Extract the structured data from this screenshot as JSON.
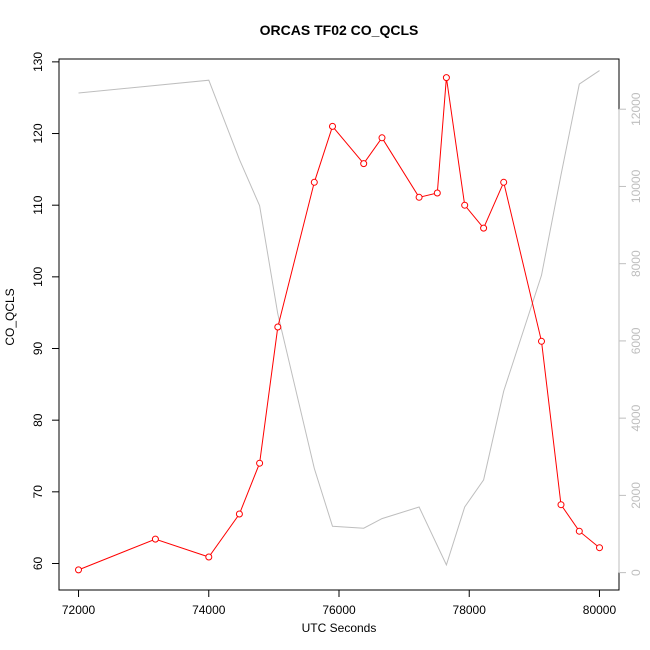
{
  "chart_data": {
    "type": "line",
    "title": "ORCAS TF02 CO_QCLS",
    "xlabel": "UTC Seconds",
    "ylabel": "CO_QCLS",
    "xlim": [
      71700,
      80300
    ],
    "ylim": [
      56.3,
      130.4
    ],
    "y2lim": [
      -450,
      13300
    ],
    "x_ticks": [
      72000,
      74000,
      76000,
      78000,
      80000
    ],
    "y_ticks": [
      60,
      70,
      80,
      90,
      100,
      110,
      120,
      130
    ],
    "y2_ticks": [
      0,
      2000,
      4000,
      6000,
      8000,
      10000,
      12000
    ],
    "colors": {
      "primary": "#ff0000",
      "secondary": "#bebebe",
      "axis": "#000000"
    },
    "series": [
      {
        "axis": "left",
        "style": "line-with-open-circles",
        "color": "#ff0000",
        "x": [
          72000,
          73180,
          74000,
          74470,
          74780,
          75060,
          75620,
          75900,
          76380,
          76660,
          77230,
          77510,
          77650,
          77930,
          78220,
          78530,
          79110,
          79410,
          79690,
          80000
        ],
        "y": [
          59.1,
          63.4,
          60.9,
          66.9,
          74.0,
          93.0,
          113.2,
          121.0,
          115.8,
          119.4,
          111.1,
          111.7,
          127.8,
          110.0,
          106.8,
          113.2,
          91.0,
          68.2,
          64.5,
          62.2
        ]
      },
      {
        "axis": "right",
        "style": "line",
        "color": "#bebebe",
        "x": [
          72000,
          74000,
          74470,
          74780,
          75060,
          75620,
          75900,
          76380,
          76660,
          77230,
          77650,
          77930,
          78220,
          78530,
          79110,
          79410,
          79690,
          80000
        ],
        "y": [
          12420,
          12750,
          10700,
          9500,
          6700,
          2700,
          1200,
          1150,
          1400,
          1700,
          200,
          1700,
          2400,
          4700,
          7700,
          10300,
          12650,
          13000
        ]
      }
    ]
  }
}
